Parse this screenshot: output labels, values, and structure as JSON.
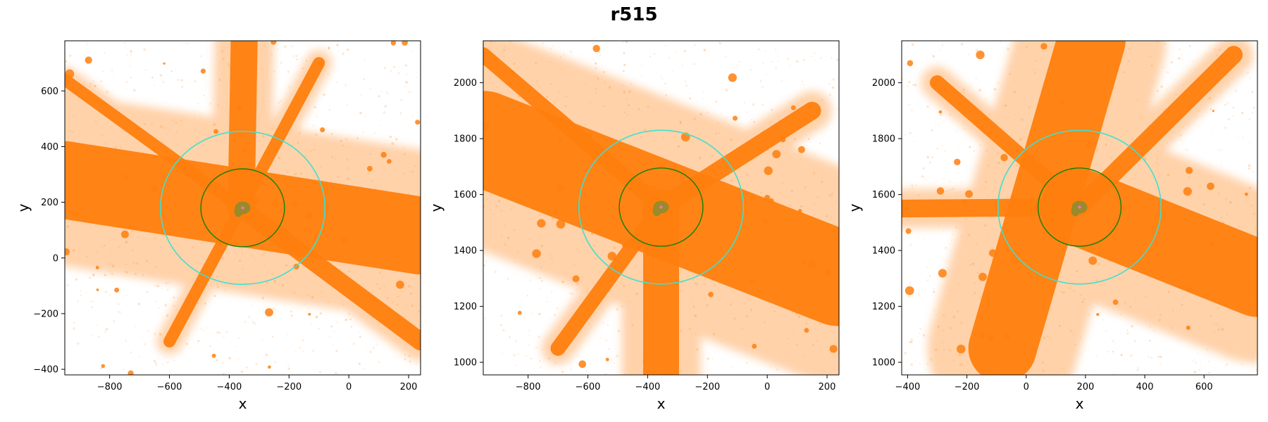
{
  "title": "r515",
  "colors": {
    "particles": "#ff7f0e",
    "halo_particles": "#9a8a2a",
    "inner_circle": "#008000",
    "outer_circle": "#40e0d0",
    "center_marker": "#e377c2"
  },
  "chart_data": [
    {
      "type": "scatter",
      "xlabel": "x",
      "ylabel": "y",
      "xlim": [
        -950,
        240
      ],
      "ylim": [
        -420,
        780
      ],
      "xticks": [
        -800,
        -600,
        -400,
        -200,
        0,
        200
      ],
      "yticks": [
        -400,
        -200,
        0,
        200,
        400,
        600
      ],
      "center": [
        -355,
        180
      ],
      "inner_radius": 140,
      "outer_radius": 275,
      "filaments": [
        {
          "from": [
            -950,
            280
          ],
          "to": [
            240,
            80
          ],
          "width": 260
        },
        {
          "from": [
            -350,
            780
          ],
          "to": [
            -360,
            180
          ],
          "width": 90
        },
        {
          "from": [
            -950,
            640
          ],
          "to": [
            -360,
            180
          ],
          "width": 40
        },
        {
          "from": [
            -100,
            700
          ],
          "to": [
            -360,
            180
          ],
          "width": 40
        },
        {
          "from": [
            -600,
            -300
          ],
          "to": [
            -360,
            180
          ],
          "width": 40
        },
        {
          "from": [
            240,
            -300
          ],
          "to": [
            -360,
            180
          ],
          "width": 60
        }
      ]
    },
    {
      "type": "scatter",
      "xlabel": "x",
      "ylabel": "y",
      "xlim": [
        -950,
        240
      ],
      "ylim": [
        955,
        2150
      ],
      "xticks": [
        -800,
        -600,
        -400,
        -200,
        0,
        200
      ],
      "yticks": [
        1000,
        1200,
        1400,
        1600,
        1800,
        2000
      ],
      "center": [
        -355,
        1555
      ],
      "inner_radius": 140,
      "outer_radius": 275,
      "filaments": [
        {
          "from": [
            -950,
            1800
          ],
          "to": [
            240,
            1300
          ],
          "width": 320
        },
        {
          "from": [
            -355,
            955
          ],
          "to": [
            -355,
            1555
          ],
          "width": 120
        },
        {
          "from": [
            -950,
            2100
          ],
          "to": [
            -355,
            1555
          ],
          "width": 50
        },
        {
          "from": [
            150,
            1900
          ],
          "to": [
            -355,
            1555
          ],
          "width": 60
        },
        {
          "from": [
            -700,
            1050
          ],
          "to": [
            -355,
            1555
          ],
          "width": 50
        }
      ]
    },
    {
      "type": "scatter",
      "xlabel": "x",
      "ylabel": "y",
      "xlim": [
        -420,
        780
      ],
      "ylim": [
        955,
        2150
      ],
      "xticks": [
        -400,
        -200,
        0,
        200,
        400,
        600
      ],
      "yticks": [
        1000,
        1200,
        1400,
        1600,
        1800,
        2000
      ],
      "center": [
        180,
        1555
      ],
      "inner_radius": 140,
      "outer_radius": 275,
      "filaments": [
        {
          "from": [
            220,
            2150
          ],
          "to": [
            -80,
            1050
          ],
          "width": 230
        },
        {
          "from": [
            780,
            1300
          ],
          "to": [
            180,
            1555
          ],
          "width": 260
        },
        {
          "from": [
            -420,
            1550
          ],
          "to": [
            180,
            1555
          ],
          "width": 60
        },
        {
          "from": [
            -300,
            2000
          ],
          "to": [
            180,
            1555
          ],
          "width": 50
        },
        {
          "from": [
            700,
            2100
          ],
          "to": [
            180,
            1555
          ],
          "width": 60
        }
      ]
    }
  ]
}
